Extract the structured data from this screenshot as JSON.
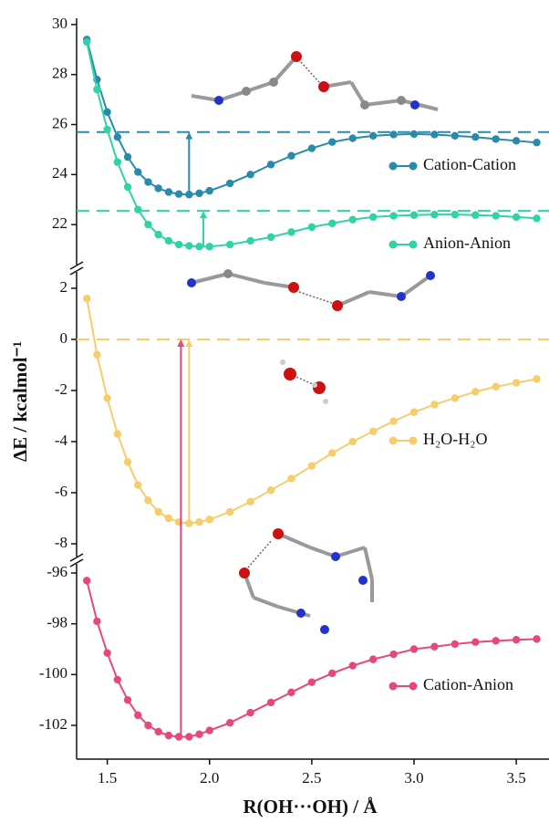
{
  "chart_data": {
    "type": "line",
    "xlabel": "R(OH···OH) / Å",
    "ylabel": "ΔE / kcalmol⁻¹",
    "x": [
      1.4,
      1.45,
      1.5,
      1.55,
      1.6,
      1.65,
      1.7,
      1.75,
      1.8,
      1.85,
      1.9,
      1.95,
      2.0,
      2.1,
      2.2,
      2.3,
      2.4,
      2.5,
      2.6,
      2.7,
      2.8,
      2.9,
      3.0,
      3.1,
      3.2,
      3.3,
      3.4,
      3.5,
      3.6
    ],
    "xlim": [
      1.35,
      3.66
    ],
    "xticks": [
      {
        "value": 1.5,
        "label": "1.5"
      },
      {
        "value": 2.0,
        "label": "2.0"
      },
      {
        "value": 2.5,
        "label": "2.5"
      },
      {
        "value": 3.0,
        "label": "3.0"
      },
      {
        "value": 3.5,
        "label": "3.5"
      }
    ],
    "panels": [
      {
        "ylim": [
          20.4,
          30.25
        ],
        "yticks": [
          22,
          24,
          26,
          28,
          30
        ],
        "series": [
          {
            "name": "Cation-Cation",
            "color": "#2a8aab",
            "dashed": 25.7,
            "arrow": [
              1.9,
              23.2
            ],
            "values": [
              29.4,
              27.8,
              26.5,
              25.5,
              24.7,
              24.1,
              23.7,
              23.45,
              23.3,
              23.22,
              23.2,
              23.25,
              23.35,
              23.65,
              24.0,
              24.4,
              24.75,
              25.05,
              25.3,
              25.45,
              25.55,
              25.6,
              25.62,
              25.6,
              25.55,
              25.5,
              25.42,
              25.35,
              25.28
            ]
          },
          {
            "name": "Anion-Anion",
            "color": "#2fd3a6",
            "dashed": 22.55,
            "arrow": [
              1.97,
              21.15
            ],
            "values": [
              29.3,
              27.4,
              25.8,
              24.5,
              23.5,
              22.6,
              22.0,
              21.6,
              21.35,
              21.2,
              21.15,
              21.12,
              21.12,
              21.2,
              21.35,
              21.5,
              21.7,
              21.9,
              22.05,
              22.2,
              22.3,
              22.35,
              22.38,
              22.4,
              22.4,
              22.38,
              22.35,
              22.3,
              22.25
            ]
          }
        ]
      },
      {
        "ylim": [
          -8.5,
          2.64
        ],
        "yticks": [
          2,
          0,
          -2,
          -4,
          -6,
          -8
        ],
        "series": [
          {
            "name": "H₂O-H₂O",
            "color": "#f6cd6a",
            "dashed": 0,
            "arrow": [
              1.9,
              -7.2
            ],
            "values": [
              1.6,
              -0.6,
              -2.3,
              -3.7,
              -4.8,
              -5.7,
              -6.3,
              -6.75,
              -7.0,
              -7.15,
              -7.2,
              -7.15,
              -7.05,
              -6.75,
              -6.35,
              -5.9,
              -5.45,
              -4.95,
              -4.45,
              -4.0,
              -3.6,
              -3.2,
              -2.85,
              -2.55,
              -2.3,
              -2.05,
              -1.85,
              -1.7,
              -1.55
            ]
          }
        ]
      },
      {
        "ylim": [
          -103.33,
          -95.64
        ],
        "yticks": [
          -96,
          -98,
          -100,
          -102
        ],
        "series": [
          {
            "name": "Cation-Anion",
            "color": "#e5497a",
            "arrow": [
              1.86,
              -102.45
            ],
            "values": [
              -96.3,
              -97.9,
              -99.15,
              -100.2,
              -101.0,
              -101.6,
              -102.0,
              -102.25,
              -102.4,
              -102.45,
              -102.45,
              -102.35,
              -102.2,
              -101.9,
              -101.5,
              -101.1,
              -100.7,
              -100.3,
              -99.95,
              -99.65,
              -99.4,
              -99.2,
              -99.0,
              -98.9,
              -98.8,
              -98.72,
              -98.67,
              -98.63,
              -98.6
            ]
          }
        ]
      }
    ]
  }
}
